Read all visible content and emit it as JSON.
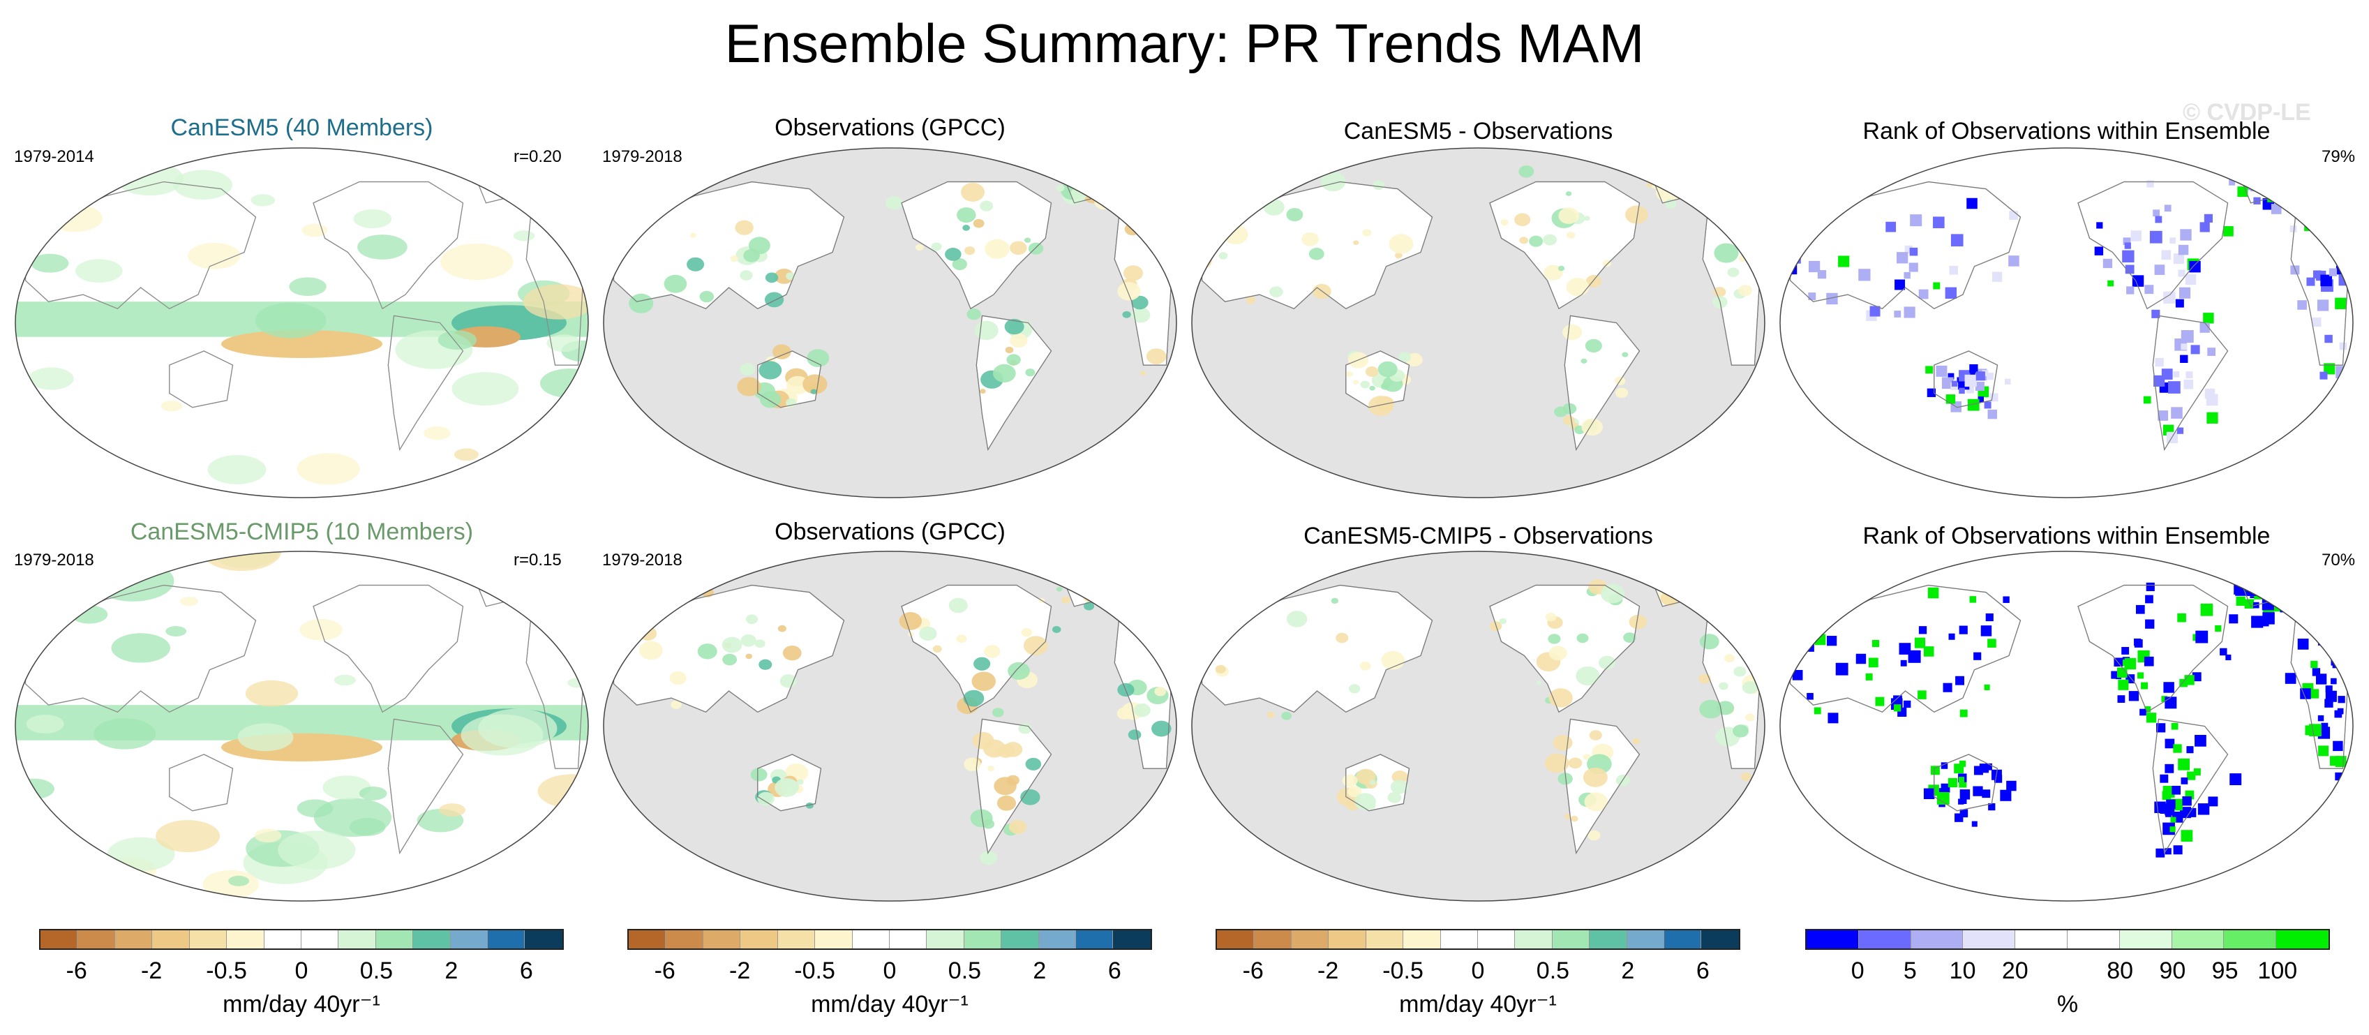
{
  "figure": {
    "title": "Ensemble Summary: PR Trends MAM",
    "watermark": "© CVDP-LE"
  },
  "rows": [
    {
      "panels": [
        {
          "title": "CanESM5 (40 Members)",
          "title_color": "#1c6e8c",
          "left_label": "1979-2014",
          "right_label": "r=0.20",
          "style": "model"
        },
        {
          "title": "Observations (GPCC)",
          "left_label": "1979-2018",
          "right_label": "",
          "style": "obs"
        },
        {
          "title": "CanESM5 - Observations",
          "left_label": "",
          "right_label": "",
          "style": "diff"
        },
        {
          "title": "Rank of Observations within Ensemble",
          "left_label": "",
          "right_label": "79%",
          "style": "rank"
        }
      ]
    },
    {
      "panels": [
        {
          "title": "CanESM5-CMIP5 (10 Members)",
          "title_color": "#6a9a6a",
          "left_label": "1979-2018",
          "right_label": "r=0.15",
          "style": "model"
        },
        {
          "title": "Observations (GPCC)",
          "left_label": "1979-2018",
          "right_label": "",
          "style": "obs"
        },
        {
          "title": "CanESM5-CMIP5 - Observations",
          "left_label": "",
          "right_label": "",
          "style": "diff"
        },
        {
          "title": "Rank of Observations within Ensemble",
          "left_label": "",
          "right_label": "70%",
          "style": "rank"
        }
      ]
    }
  ],
  "colorbars": [
    {
      "colors": [
        "#b5672a",
        "#cc8a4b",
        "#deaa68",
        "#edc985",
        "#f5e0a8",
        "#fcf5cd",
        "#ffffff",
        "#ffffff",
        "#d6f5d6",
        "#a2e6b4",
        "#5fc2a4",
        "#76aacc",
        "#1e6fac",
        "#0b3c5c"
      ],
      "ticks": [
        {
          "label": "-6",
          "after_box": 1
        },
        {
          "label": "-2",
          "after_box": 3
        },
        {
          "label": "-0.5",
          "after_box": 5
        },
        {
          "label": "0",
          "after_box": 7
        },
        {
          "label": "0.5",
          "after_box": 9
        },
        {
          "label": "2",
          "after_box": 11
        },
        {
          "label": "6",
          "after_box": 13
        }
      ],
      "units": "mm/day 40yr⁻¹"
    },
    {
      "colors": [
        "#b5672a",
        "#cc8a4b",
        "#deaa68",
        "#edc985",
        "#f5e0a8",
        "#fcf5cd",
        "#ffffff",
        "#ffffff",
        "#d6f5d6",
        "#a2e6b4",
        "#5fc2a4",
        "#76aacc",
        "#1e6fac",
        "#0b3c5c"
      ],
      "ticks": [
        {
          "label": "-6",
          "after_box": 1
        },
        {
          "label": "-2",
          "after_box": 3
        },
        {
          "label": "-0.5",
          "after_box": 5
        },
        {
          "label": "0",
          "after_box": 7
        },
        {
          "label": "0.5",
          "after_box": 9
        },
        {
          "label": "2",
          "after_box": 11
        },
        {
          "label": "6",
          "after_box": 13
        }
      ],
      "units": "mm/day 40yr⁻¹"
    },
    {
      "colors": [
        "#b5672a",
        "#cc8a4b",
        "#deaa68",
        "#edc985",
        "#f5e0a8",
        "#fcf5cd",
        "#ffffff",
        "#ffffff",
        "#d6f5d6",
        "#a2e6b4",
        "#5fc2a4",
        "#76aacc",
        "#1e6fac",
        "#0b3c5c"
      ],
      "ticks": [
        {
          "label": "-6",
          "after_box": 1
        },
        {
          "label": "-2",
          "after_box": 3
        },
        {
          "label": "-0.5",
          "after_box": 5
        },
        {
          "label": "0",
          "after_box": 7
        },
        {
          "label": "0.5",
          "after_box": 9
        },
        {
          "label": "2",
          "after_box": 11
        },
        {
          "label": "6",
          "after_box": 13
        }
      ],
      "units": "mm/day 40yr⁻¹"
    },
    {
      "colors": [
        "#0000ff",
        "#6b6bff",
        "#aeaef5",
        "#e2e2fa",
        "#ffffff",
        "#ffffff",
        "#e0fbe0",
        "#a8f5a8",
        "#66ee66",
        "#00ee00"
      ],
      "ticks": [
        {
          "label": "0",
          "after_box": 1
        },
        {
          "label": "5",
          "after_box": 2
        },
        {
          "label": "10",
          "after_box": 3
        },
        {
          "label": "20",
          "after_box": 4
        },
        {
          "label": "80",
          "after_box": 6
        },
        {
          "label": "90",
          "after_box": 7
        },
        {
          "label": "95",
          "after_box": 8
        },
        {
          "label": "100",
          "after_box": 9
        }
      ],
      "units": "%"
    }
  ]
}
